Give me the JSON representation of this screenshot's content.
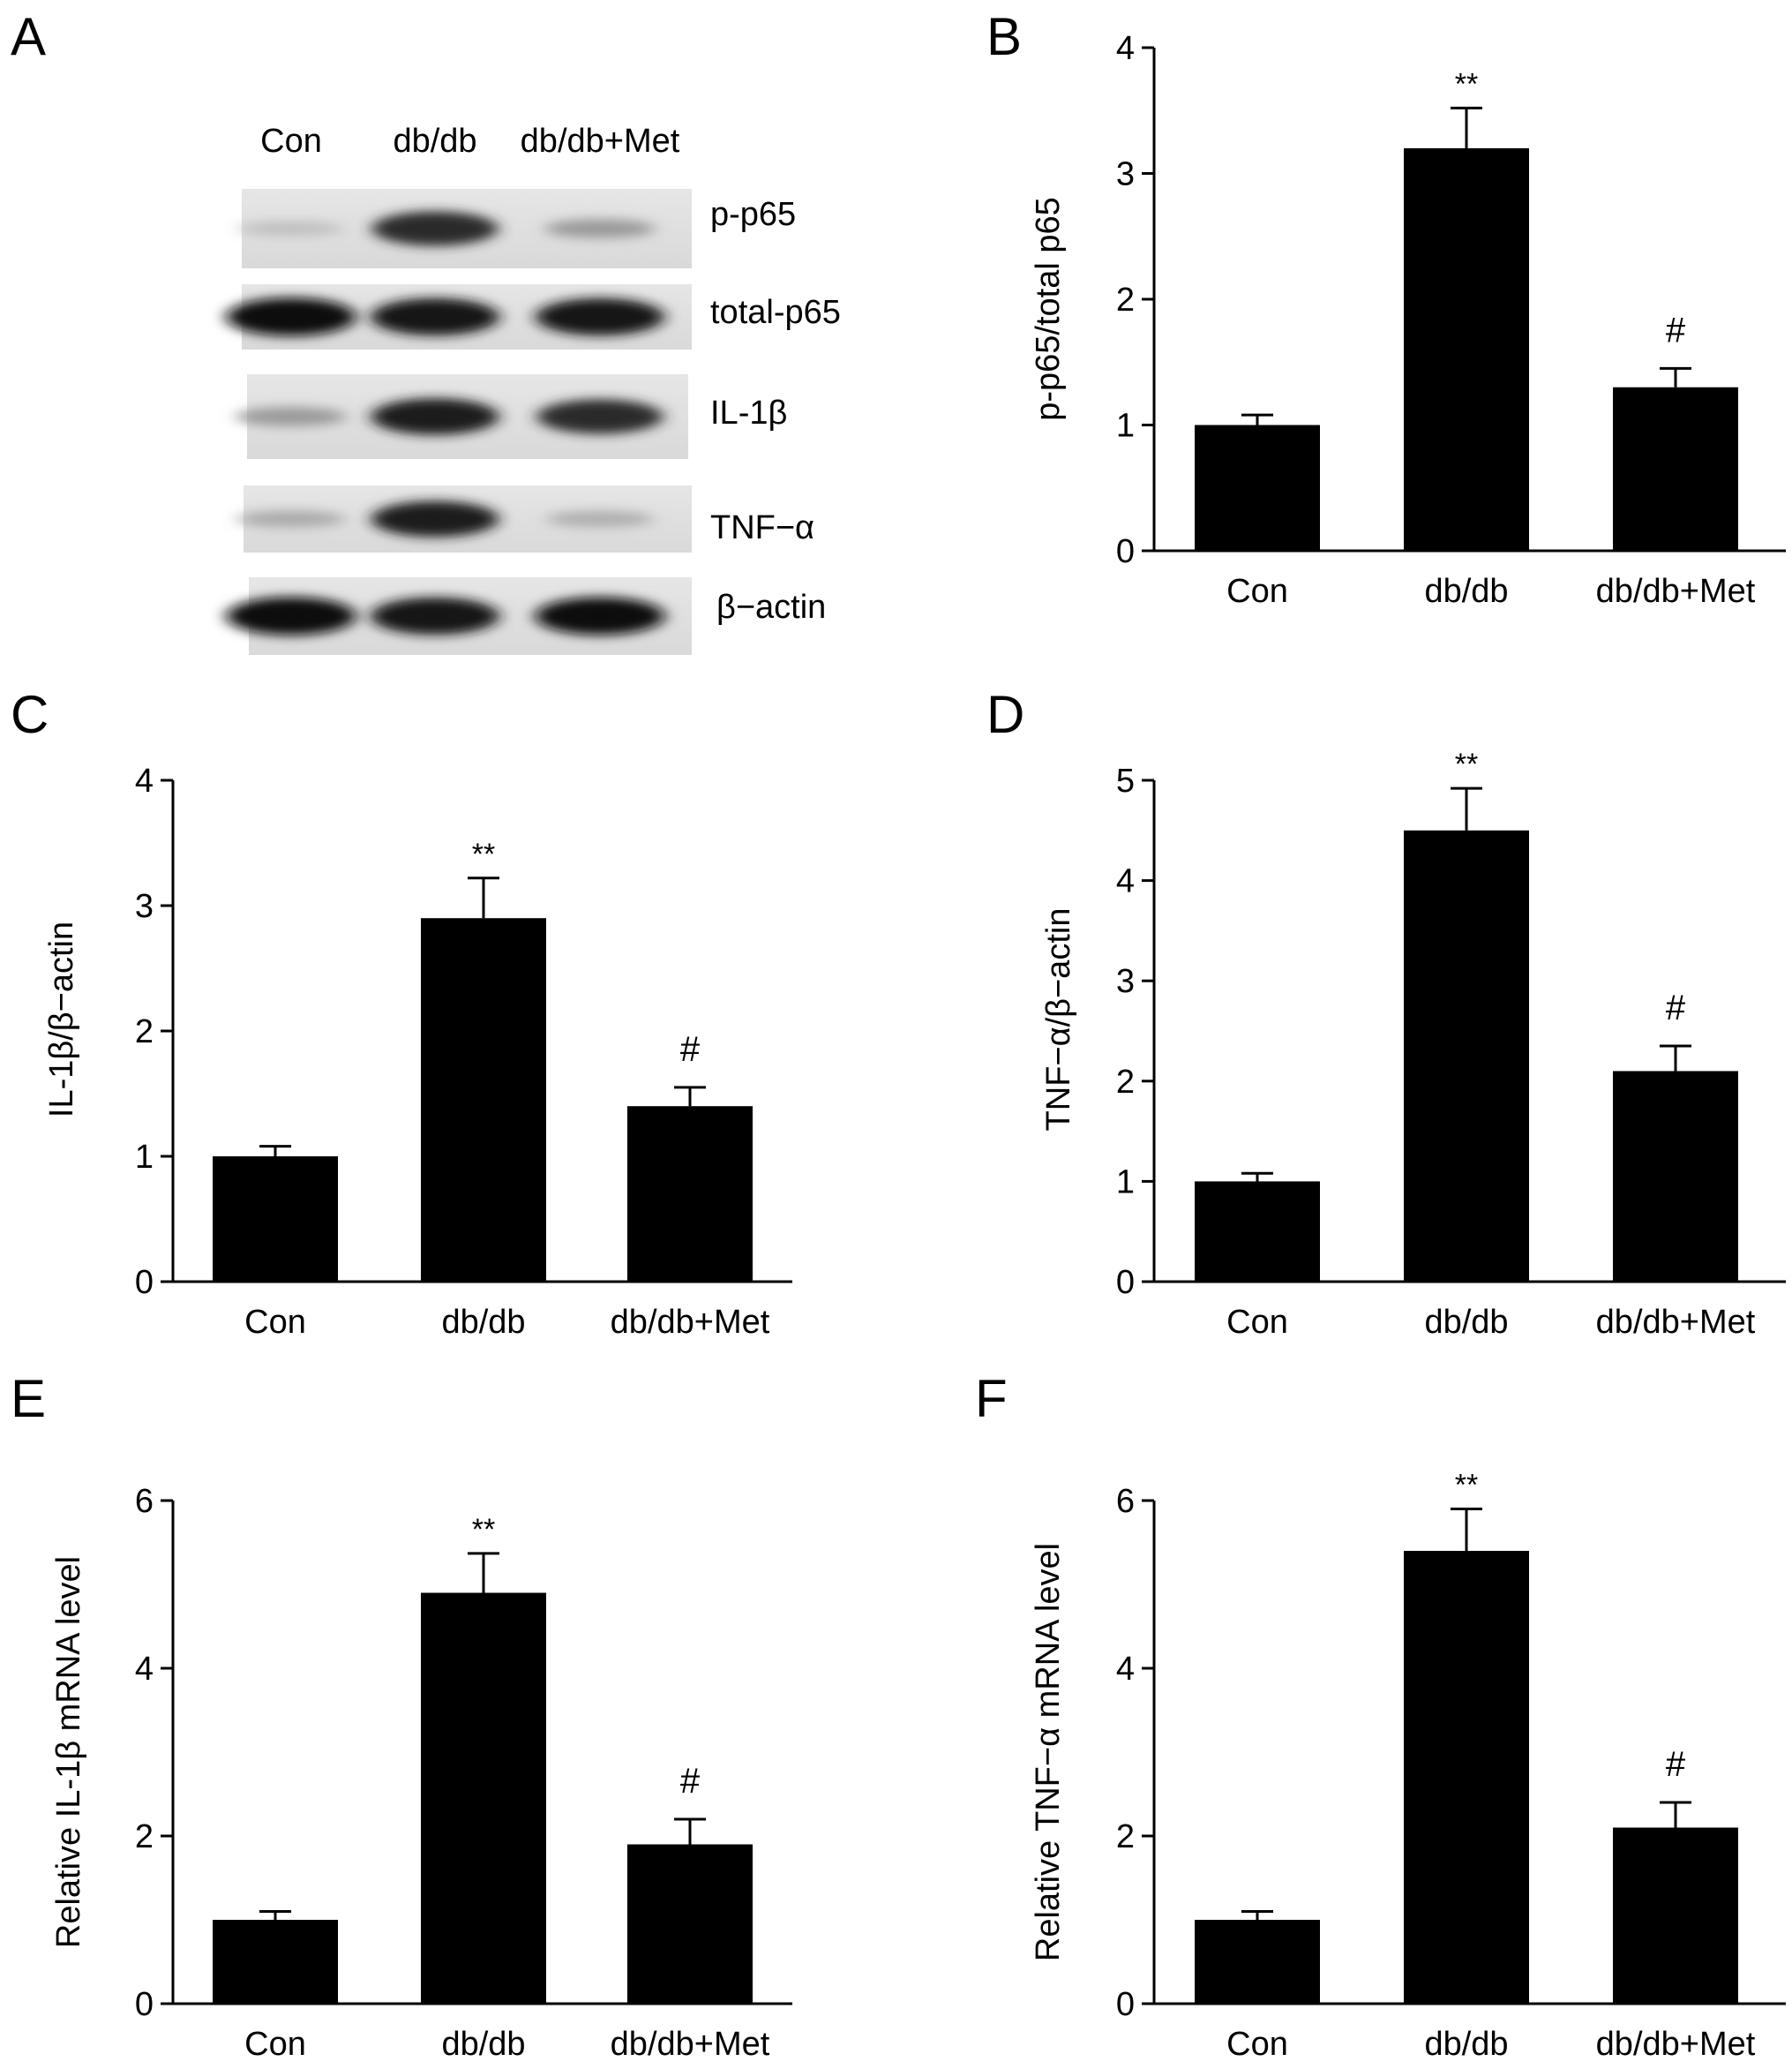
{
  "panel_a": {
    "letter": "A",
    "lanes": [
      "Con",
      "db/db",
      "db/db+Met"
    ],
    "bands": [
      {
        "name": "p-p65",
        "intensity": [
          0.12,
          0.85,
          0.3
        ]
      },
      {
        "name": "total-p65",
        "intensity": [
          0.98,
          0.95,
          0.95
        ]
      },
      {
        "name": "IL-1β",
        "intensity": [
          0.3,
          0.92,
          0.85
        ]
      },
      {
        "name": "TNF−α",
        "intensity": [
          0.22,
          0.9,
          0.2
        ]
      },
      {
        "name": "β−actin",
        "intensity": [
          0.98,
          0.95,
          0.97
        ]
      }
    ]
  },
  "chart_data": [
    {
      "letter": "B",
      "type": "bar",
      "categories": [
        "Con",
        "db/db",
        "db/db+Met"
      ],
      "values": [
        1.0,
        3.2,
        1.3
      ],
      "errors": [
        0.08,
        0.32,
        0.15
      ],
      "annotations": [
        "",
        "**",
        "#"
      ],
      "ylabel": "p-p65/total p65",
      "ylim": [
        0,
        4
      ],
      "yticks": [
        "0",
        "1",
        "2",
        "3",
        "4"
      ],
      "bar_color": "#000000"
    },
    {
      "letter": "C",
      "type": "bar",
      "categories": [
        "Con",
        "db/db",
        "db/db+Met"
      ],
      "values": [
        1.0,
        2.9,
        1.4
      ],
      "errors": [
        0.08,
        0.32,
        0.15
      ],
      "annotations": [
        "",
        "**",
        "#"
      ],
      "ylabel": "IL-1β/β−actin",
      "ylim": [
        0,
        4
      ],
      "yticks": [
        "0",
        "1",
        "2",
        "3",
        "4"
      ],
      "bar_color": "#000000"
    },
    {
      "letter": "D",
      "type": "bar",
      "categories": [
        "Con",
        "db/db",
        "db/db+Met"
      ],
      "values": [
        1.0,
        4.5,
        2.1
      ],
      "errors": [
        0.08,
        0.42,
        0.25
      ],
      "annotations": [
        "",
        "**",
        "#"
      ],
      "ylabel": "TNF−α/β−actin",
      "ylim": [
        0,
        5
      ],
      "yticks": [
        "0",
        "1",
        "2",
        "3",
        "4",
        "5"
      ],
      "bar_color": "#000000"
    },
    {
      "letter": "E",
      "type": "bar",
      "categories": [
        "Con",
        "db/db",
        "db/db+Met"
      ],
      "values": [
        1.0,
        4.9,
        1.9
      ],
      "errors": [
        0.1,
        0.47,
        0.3
      ],
      "annotations": [
        "",
        "**",
        "#"
      ],
      "ylabel": "Relative IL-1β mRNA level",
      "ylim": [
        0,
        6
      ],
      "yticks": [
        "0",
        "2",
        "4",
        "6"
      ],
      "bar_color": "#000000"
    },
    {
      "letter": "F",
      "type": "bar",
      "categories": [
        "Con",
        "db/db",
        "db/db+Met"
      ],
      "values": [
        1.0,
        5.4,
        2.1
      ],
      "errors": [
        0.1,
        0.5,
        0.3
      ],
      "annotations": [
        "",
        "**",
        "#"
      ],
      "ylabel": "Relative TNF−α mRNA level",
      "ylim": [
        0,
        6
      ],
      "yticks": [
        "0",
        "2",
        "4",
        "6"
      ],
      "bar_color": "#000000"
    }
  ]
}
